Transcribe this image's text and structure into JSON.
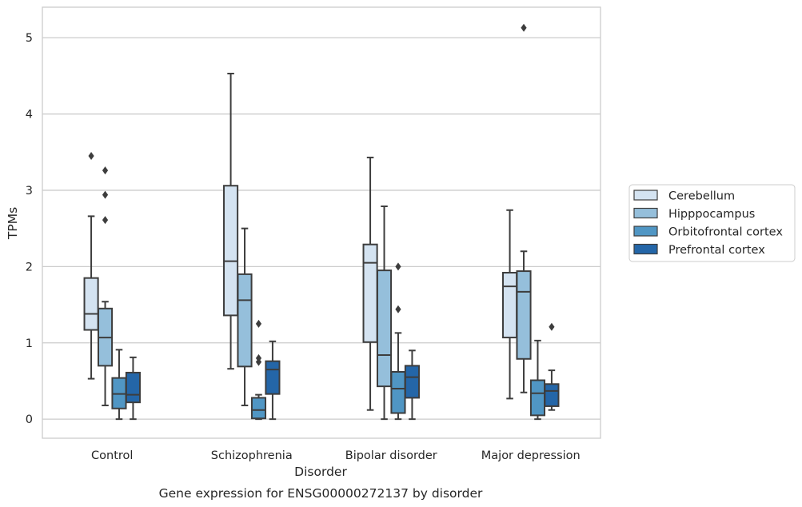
{
  "chart_data": {
    "type": "boxplot",
    "title": "",
    "caption": "Gene expression for ENSG00000272137 by disorder",
    "xlabel": "Disorder",
    "ylabel": "TPMs",
    "ylim": [
      -0.25,
      5.4
    ],
    "yticks": [
      0,
      1,
      2,
      3,
      4,
      5
    ],
    "grid": "horizontal",
    "legend_position": "right",
    "categories": [
      "Control",
      "Schizophrenia",
      "Bipolar disorder",
      "Major depression"
    ],
    "series": [
      {
        "name": "Cerebellum",
        "color": "#d4e3f1",
        "boxes": [
          {
            "whislo": 0.53,
            "q1": 1.17,
            "med": 1.38,
            "q3": 1.85,
            "whishi": 2.66,
            "fliers": [
              3.45
            ]
          },
          {
            "whislo": 0.66,
            "q1": 1.36,
            "med": 2.07,
            "q3": 3.06,
            "whishi": 4.53,
            "fliers": []
          },
          {
            "whislo": 0.12,
            "q1": 1.01,
            "med": 2.05,
            "q3": 2.29,
            "whishi": 3.43,
            "fliers": []
          },
          {
            "whislo": 0.27,
            "q1": 1.07,
            "med": 1.74,
            "q3": 1.92,
            "whishi": 2.74,
            "fliers": []
          }
        ]
      },
      {
        "name": "Hipppocampus",
        "color": "#95bfdb",
        "boxes": [
          {
            "whislo": 0.18,
            "q1": 0.7,
            "med": 1.07,
            "q3": 1.45,
            "whishi": 1.54,
            "fliers": [
              2.61,
              2.94,
              3.26
            ]
          },
          {
            "whislo": 0.18,
            "q1": 0.69,
            "med": 1.56,
            "q3": 1.9,
            "whishi": 2.5,
            "fliers": []
          },
          {
            "whislo": 0.0,
            "q1": 0.43,
            "med": 0.84,
            "q3": 1.95,
            "whishi": 2.79,
            "fliers": []
          },
          {
            "whislo": 0.35,
            "q1": 0.79,
            "med": 1.67,
            "q3": 1.94,
            "whishi": 2.2,
            "fliers": [
              5.13
            ]
          }
        ]
      },
      {
        "name": "Orbitofrontal cortex",
        "color": "#5096c4",
        "boxes": [
          {
            "whislo": 0.0,
            "q1": 0.14,
            "med": 0.33,
            "q3": 0.54,
            "whishi": 0.91,
            "fliers": []
          },
          {
            "whislo": 0.0,
            "q1": 0.01,
            "med": 0.12,
            "q3": 0.28,
            "whishi": 0.32,
            "fliers": [
              0.75,
              0.8,
              1.25
            ]
          },
          {
            "whislo": 0.0,
            "q1": 0.08,
            "med": 0.4,
            "q3": 0.62,
            "whishi": 1.13,
            "fliers": [
              1.44,
              2.0
            ]
          },
          {
            "whislo": 0.0,
            "q1": 0.05,
            "med": 0.34,
            "q3": 0.51,
            "whishi": 1.03,
            "fliers": []
          }
        ]
      },
      {
        "name": "Prefrontal cortex",
        "color": "#2466a8",
        "boxes": [
          {
            "whislo": 0.0,
            "q1": 0.22,
            "med": 0.32,
            "q3": 0.61,
            "whishi": 0.81,
            "fliers": []
          },
          {
            "whislo": 0.0,
            "q1": 0.33,
            "med": 0.65,
            "q3": 0.76,
            "whishi": 1.02,
            "fliers": []
          },
          {
            "whislo": 0.0,
            "q1": 0.28,
            "med": 0.55,
            "q3": 0.7,
            "whishi": 0.9,
            "fliers": []
          },
          {
            "whislo": 0.12,
            "q1": 0.17,
            "med": 0.37,
            "q3": 0.46,
            "whishi": 0.64,
            "fliers": [
              1.21
            ]
          }
        ]
      }
    ]
  }
}
